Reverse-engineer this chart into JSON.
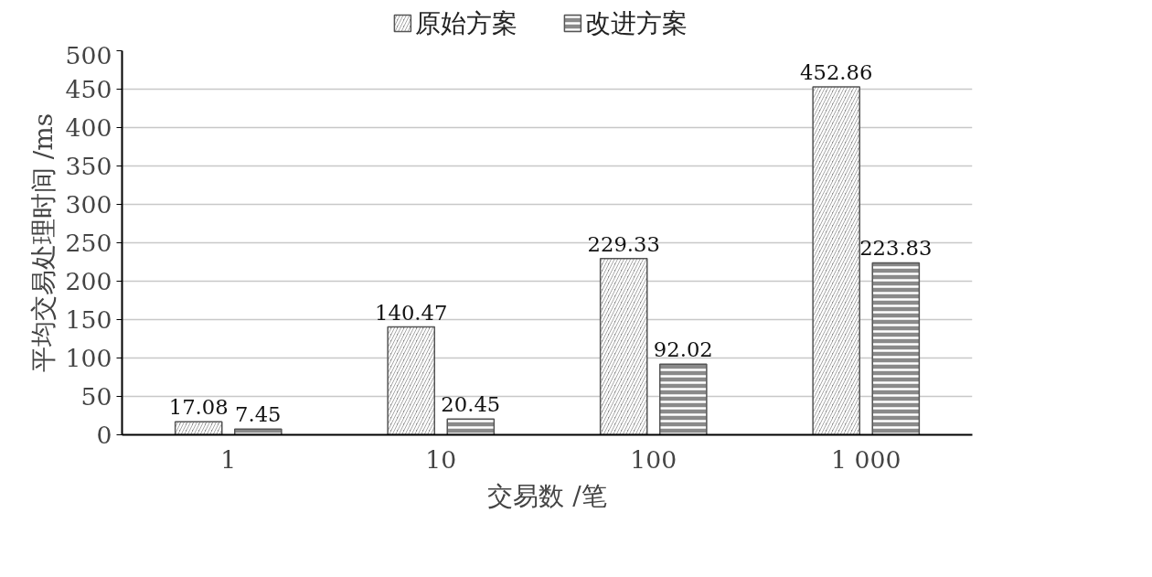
{
  "chart_data": {
    "type": "bar",
    "xlabel": "交易数 /笔",
    "ylabel": "平均交易处理时间 /ms",
    "categories": [
      "1",
      "10",
      "100",
      "1 000"
    ],
    "series": [
      {
        "name": "原始方案",
        "color": "#8a8a8a",
        "values": [
          17.08,
          140.47,
          229.33,
          452.86
        ]
      },
      {
        "name": "改进方案",
        "color": "#8a8a8a",
        "values": [
          7.45,
          20.45,
          92.02,
          223.83
        ]
      }
    ],
    "ylim": [
      0,
      500
    ],
    "yticks": [
      0,
      50,
      100,
      150,
      200,
      250,
      300,
      350,
      400,
      450,
      500
    ],
    "grid": "y",
    "legend": "top",
    "data_labels": true
  }
}
